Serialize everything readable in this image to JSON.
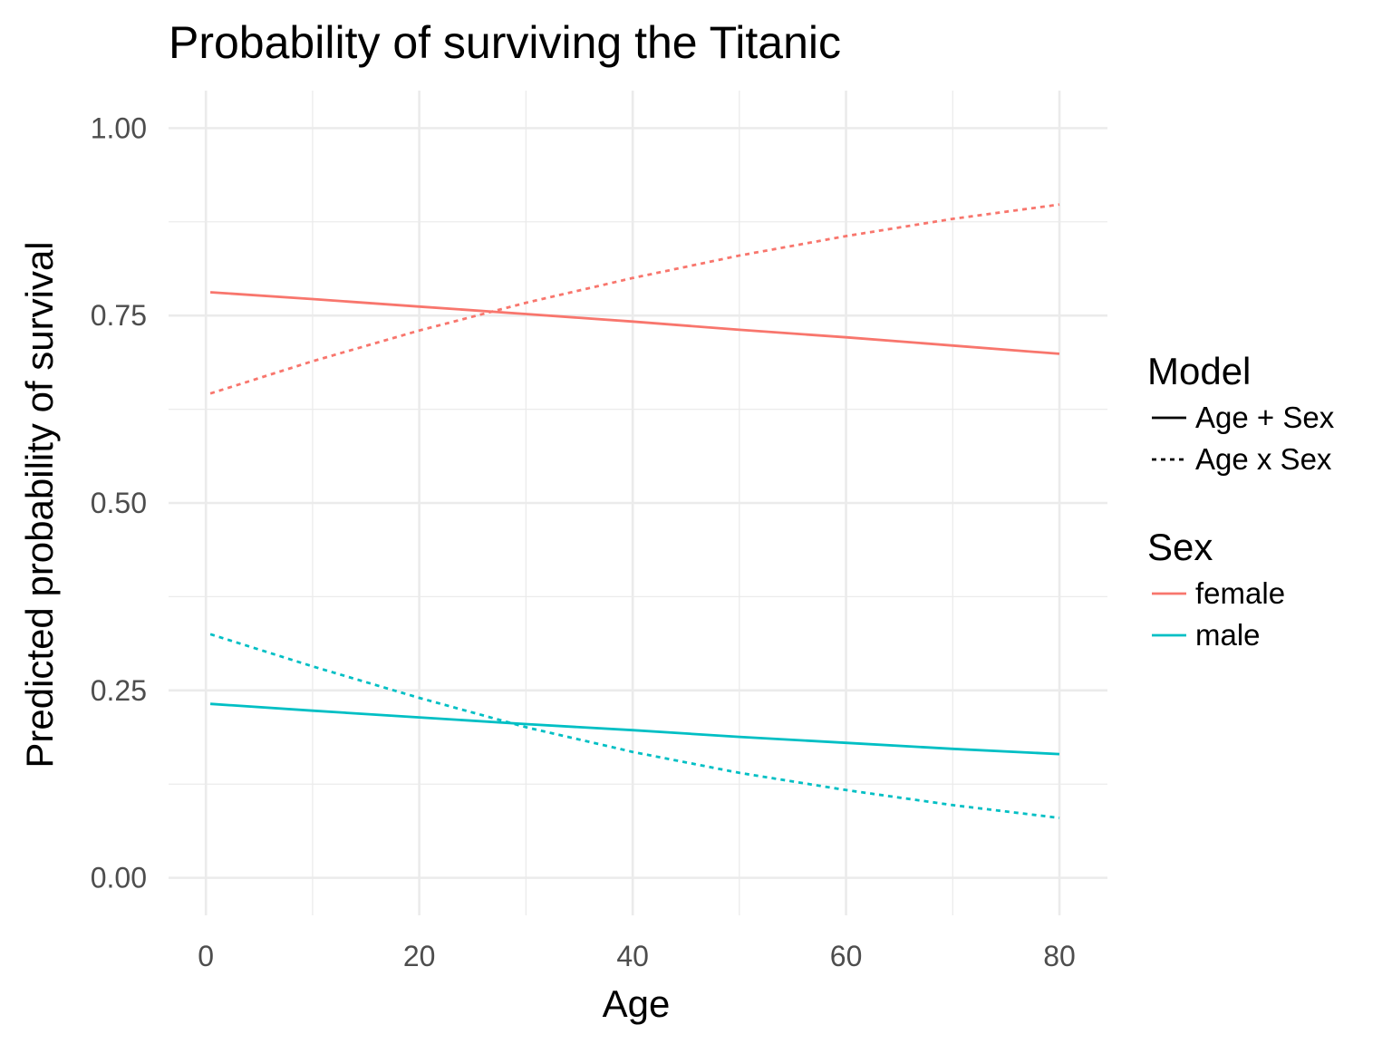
{
  "chart_data": {
    "type": "line",
    "title": "Probability of surviving the Titanic",
    "xlabel": "Age",
    "ylabel": "Predicted probability of survival",
    "xlim": [
      -3.5,
      84.5
    ],
    "ylim": [
      -0.05,
      1.05
    ],
    "x_ticks": [
      0,
      20,
      40,
      60,
      80
    ],
    "x_tick_labels": [
      "0",
      "20",
      "40",
      "60",
      "80"
    ],
    "y_ticks": [
      0,
      0.25,
      0.5,
      0.75,
      1.0
    ],
    "y_tick_labels": [
      "0.00",
      "0.25",
      "0.50",
      "0.75",
      "1.00"
    ],
    "grid": true,
    "legend_placement": "right",
    "legends": [
      {
        "title": "Model",
        "entries": [
          {
            "label": "Age + Sex",
            "linetype": "solid",
            "color": "#000000"
          },
          {
            "label": "Age x Sex",
            "linetype": "dotted",
            "color": "#000000"
          }
        ]
      },
      {
        "title": "Sex",
        "entries": [
          {
            "label": "female",
            "linetype": "solid",
            "color": "#F8766D"
          },
          {
            "label": "male",
            "linetype": "solid",
            "color": "#00BFC4"
          }
        ]
      }
    ],
    "series": [
      {
        "sex": "female",
        "model": "Age + Sex",
        "color": "#F8766D",
        "linetype": "solid",
        "x": [
          0.42,
          10,
          20,
          30,
          40,
          50,
          60,
          70,
          80
        ],
        "y": [
          0.781,
          0.772,
          0.762,
          0.752,
          0.742,
          0.731,
          0.721,
          0.71,
          0.699
        ]
      },
      {
        "sex": "female",
        "model": "Age x Sex",
        "color": "#F8766D",
        "linetype": "dotted",
        "x": [
          0.42,
          10,
          20,
          30,
          40,
          50,
          60,
          70,
          80
        ],
        "y": [
          0.646,
          0.689,
          0.73,
          0.767,
          0.8,
          0.83,
          0.856,
          0.879,
          0.898
        ]
      },
      {
        "sex": "male",
        "model": "Age + Sex",
        "color": "#00BFC4",
        "linetype": "solid",
        "x": [
          0.42,
          10,
          20,
          30,
          40,
          50,
          60,
          70,
          80
        ],
        "y": [
          0.232,
          0.223,
          0.214,
          0.205,
          0.197,
          0.188,
          0.18,
          0.172,
          0.165
        ]
      },
      {
        "sex": "male",
        "model": "Age x Sex",
        "color": "#00BFC4",
        "linetype": "dotted",
        "x": [
          0.42,
          10,
          20,
          30,
          40,
          50,
          60,
          70,
          80
        ],
        "y": [
          0.325,
          0.282,
          0.24,
          0.201,
          0.168,
          0.14,
          0.117,
          0.097,
          0.08
        ]
      }
    ]
  }
}
